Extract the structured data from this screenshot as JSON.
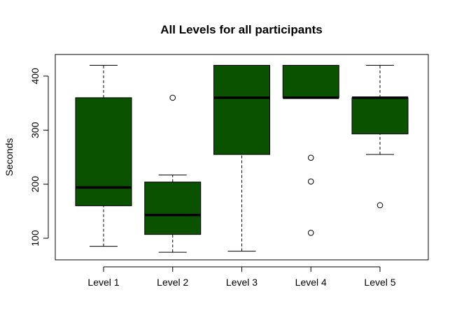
{
  "chart_data": {
    "type": "boxplot",
    "title": "All Levels for all participants",
    "xlabel": "",
    "ylabel": "Seconds",
    "ylim": [
      60,
      440
    ],
    "y_ticks": [
      100,
      200,
      300,
      400
    ],
    "y_tick_labels": [
      "100",
      "200",
      "300",
      "400"
    ],
    "categories": [
      "Level 1",
      "Level 2",
      "Level 3",
      "Level 4",
      "Level 5"
    ],
    "boxes": [
      {
        "category": "Level 1",
        "whisker_low": 85,
        "q1": 160,
        "median": 194,
        "q3": 360,
        "whisker_high": 420,
        "outliers": []
      },
      {
        "category": "Level 2",
        "whisker_low": 74,
        "q1": 107,
        "median": 143,
        "q3": 204,
        "whisker_high": 217,
        "outliers": [
          360
        ]
      },
      {
        "category": "Level 3",
        "whisker_low": 76,
        "q1": 255,
        "median": 360,
        "q3": 420,
        "whisker_high": 420,
        "outliers": []
      },
      {
        "category": "Level 4",
        "whisker_low": 360,
        "q1": 360,
        "median": 360,
        "q3": 420,
        "whisker_high": 420,
        "outliers": [
          249,
          205,
          110
        ]
      },
      {
        "category": "Level 5",
        "whisker_low": 255,
        "q1": 293,
        "median": 360,
        "q3": 360,
        "whisker_high": 420,
        "outliers": [
          161
        ]
      }
    ],
    "colors": {
      "box_fill": "#0a5200",
      "stroke": "#000000"
    },
    "grid": false,
    "legend": "none"
  }
}
